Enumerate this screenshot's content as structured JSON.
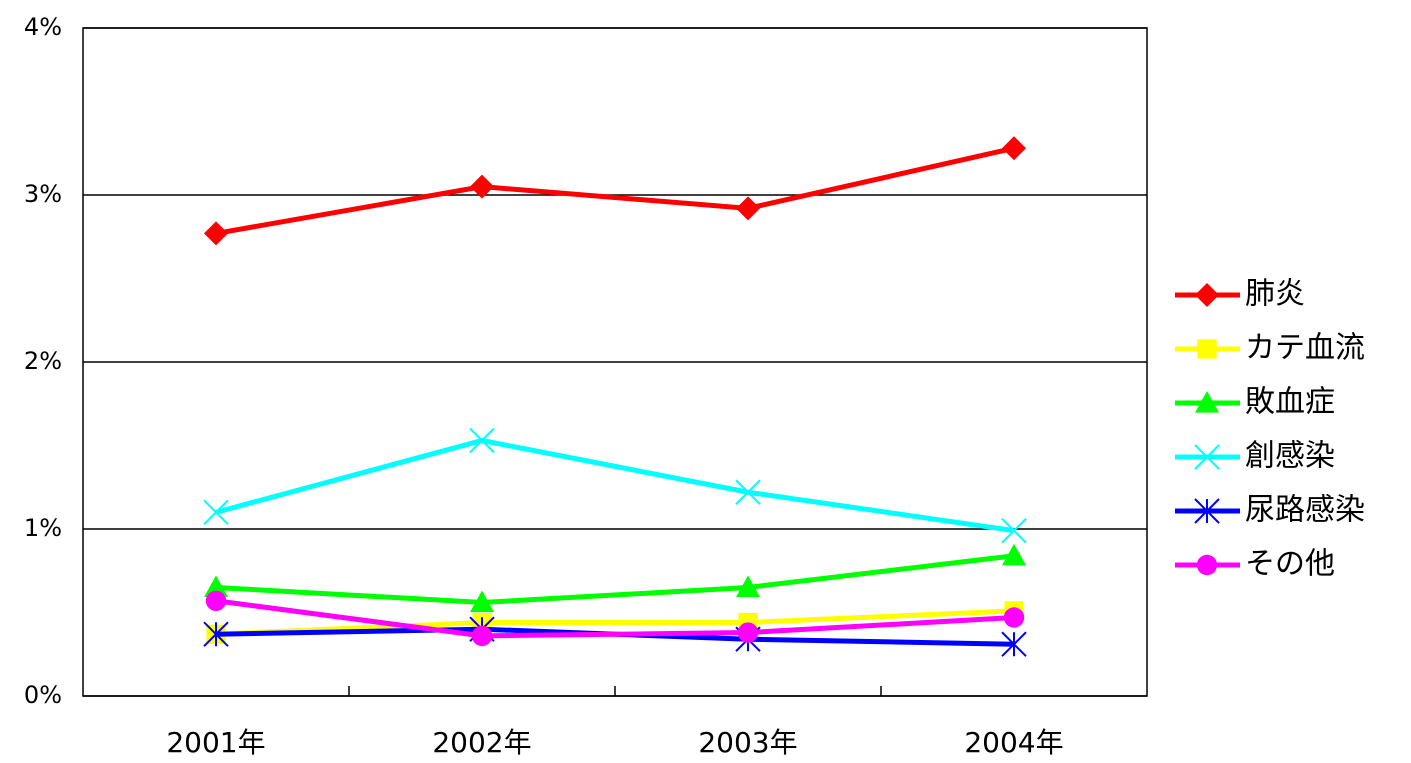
{
  "chart_data": {
    "type": "line",
    "categories": [
      "2001年",
      "2002年",
      "2003年",
      "2004年"
    ],
    "ylim": [
      0,
      4
    ],
    "yticks": [
      {
        "value": 0,
        "label": "0%"
      },
      {
        "value": 1,
        "label": "1%"
      },
      {
        "value": 2,
        "label": "2%"
      },
      {
        "value": 3,
        "label": "3%"
      },
      {
        "value": 4,
        "label": "4%"
      }
    ],
    "grid": true,
    "legend": "right",
    "series": [
      {
        "name": "肺炎",
        "color": "#ff0000",
        "marker": "diamond",
        "values": [
          2.77,
          3.05,
          2.92,
          3.28
        ]
      },
      {
        "name": "カテ血流",
        "color": "#ffff00",
        "marker": "square",
        "values": [
          0.37,
          0.44,
          0.44,
          0.51
        ]
      },
      {
        "name": "敗血症",
        "color": "#00ff00",
        "marker": "triangle",
        "values": [
          0.65,
          0.56,
          0.65,
          0.84
        ]
      },
      {
        "name": "創感染",
        "color": "#00ffff",
        "marker": "x",
        "values": [
          1.1,
          1.53,
          1.22,
          0.99
        ]
      },
      {
        "name": "尿路感染",
        "color": "#0000ff",
        "marker": "asterisk",
        "values": [
          0.37,
          0.4,
          0.34,
          0.31
        ]
      },
      {
        "name": "その他",
        "color": "#ff00ff",
        "marker": "circle",
        "values": [
          0.57,
          0.36,
          0.38,
          0.47
        ]
      }
    ]
  }
}
